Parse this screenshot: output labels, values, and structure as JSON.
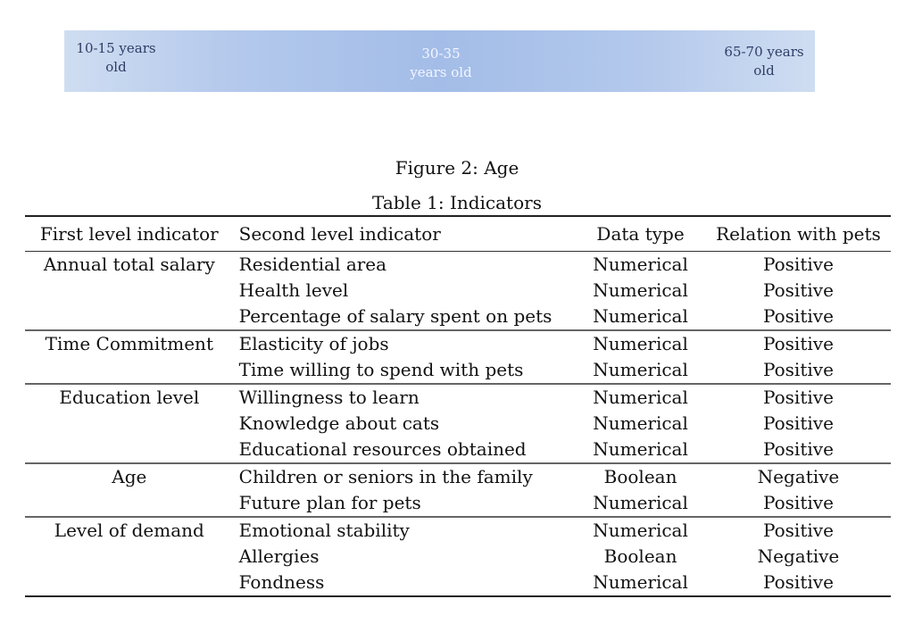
{
  "age_band": {
    "left_label": [
      "10-15 years",
      "old"
    ],
    "mid_label": [
      "30-35",
      "years old"
    ],
    "right_label": [
      "65-70 years",
      "old"
    ]
  },
  "figure_caption": "Figure 2: Age",
  "table_caption": "Table 1: Indicators",
  "table": {
    "headers": [
      "First level indicator",
      "Second level indicator",
      "Data type",
      "Relation with pets"
    ],
    "groups": [
      {
        "first": "Annual total salary",
        "rows": [
          {
            "second": "Residential area",
            "type": "Numerical",
            "relation": "Positive"
          },
          {
            "second": "Health level",
            "type": "Numerical",
            "relation": "Positive"
          },
          {
            "second": "Percentage of salary spent on pets",
            "type": "Numerical",
            "relation": "Positive"
          }
        ]
      },
      {
        "first": "Time Commitment",
        "rows": [
          {
            "second": "Elasticity of jobs",
            "type": "Numerical",
            "relation": "Positive"
          },
          {
            "second": "Time willing to spend with pets",
            "type": "Numerical",
            "relation": "Positive"
          }
        ]
      },
      {
        "first": "Education level",
        "rows": [
          {
            "second": "Willingness to learn",
            "type": "Numerical",
            "relation": "Positive"
          },
          {
            "second": "Knowledge about cats",
            "type": "Numerical",
            "relation": "Positive"
          },
          {
            "second": "Educational resources obtained",
            "type": "Numerical",
            "relation": "Positive"
          }
        ]
      },
      {
        "first": "Age",
        "rows": [
          {
            "second": "Children or seniors in the family",
            "type": "Boolean",
            "relation": "Negative"
          },
          {
            "second": "Future plan for pets",
            "type": "Numerical",
            "relation": "Positive"
          }
        ]
      },
      {
        "first": "Level of demand",
        "rows": [
          {
            "second": "Emotional stability",
            "type": "Numerical",
            "relation": "Positive"
          },
          {
            "second": "Allergies",
            "type": "Boolean",
            "relation": "Negative"
          },
          {
            "second": "Fondness",
            "type": "Numerical",
            "relation": "Positive"
          }
        ]
      }
    ]
  }
}
